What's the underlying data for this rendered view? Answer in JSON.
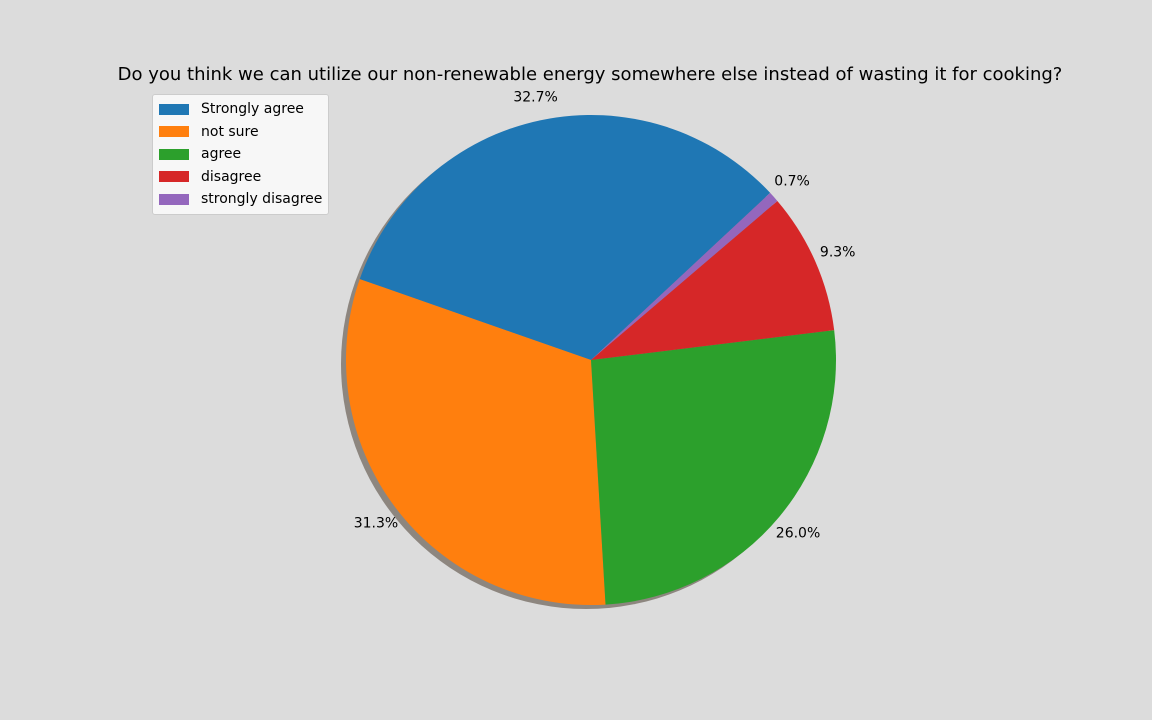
{
  "chart_data": {
    "type": "pie",
    "title": "Do you think we can utilize our non-renewable energy somewhere else instead of wasting it for cooking?",
    "categories": [
      "Strongly agree",
      "not sure",
      "agree",
      "disagree",
      "strongly disagree"
    ],
    "values": [
      32.7,
      31.3,
      26.0,
      9.3,
      0.7
    ],
    "labels": [
      "32.7%",
      "31.3%",
      "26.0%",
      "9.3%",
      "0.7%"
    ],
    "colors": [
      "#1f77b4",
      "#ff7f0e",
      "#2ca02c",
      "#d62728",
      "#9467bd"
    ],
    "start_angle_deg": 43,
    "direction": "counterclockwise",
    "shadow": true,
    "legend": "top-left"
  }
}
